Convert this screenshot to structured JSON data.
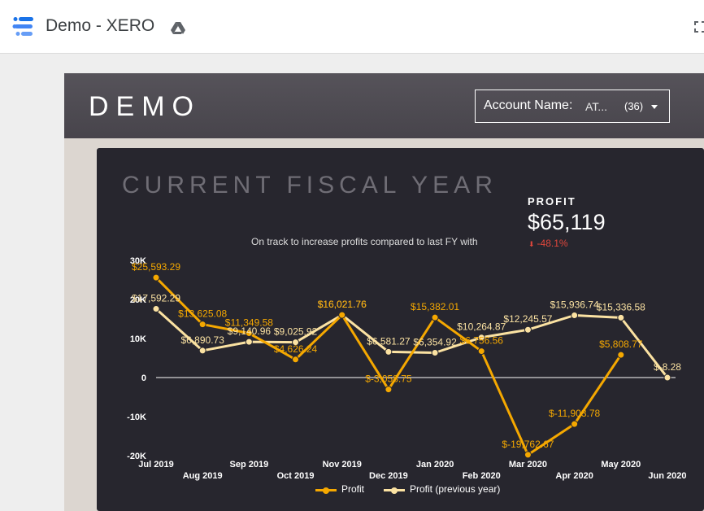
{
  "app": {
    "title": "Demo - XERO",
    "logo_icon": "data-studio-logo-icon",
    "drive_icon": "google-drive-icon",
    "fullscreen_icon": "fullscreen-icon"
  },
  "report": {
    "title": "DEMO",
    "filter": {
      "label": "Account Name:",
      "value": "AT...",
      "count": "(36)",
      "caret_icon": "caret-down-icon"
    }
  },
  "section": {
    "title": "CURRENT FISCAL YEAR",
    "subtitle": "On track to increase profits compared to last FY with"
  },
  "kpi": {
    "label": "PROFIT",
    "value": "$65,119",
    "delta": "-48.1%",
    "delta_color": "#e0473c",
    "delta_icon": "arrow-down-icon"
  },
  "colors": {
    "profit": "#f5a800",
    "profit_prev": "#fbe2a2",
    "panel": "#27262e",
    "header": "#4f4c53"
  },
  "chart_data": {
    "type": "line",
    "categories": [
      "Jul 2019",
      "Aug 2019",
      "Sep 2019",
      "Oct 2019",
      "Nov 2019",
      "Dec 2019",
      "Jan 2020",
      "Feb 2020",
      "Mar 2020",
      "Apr 2020",
      "May 2020",
      "Jun 2020"
    ],
    "yticks": [
      "30K",
      "20K",
      "10K",
      "0",
      "-10K",
      "-20K"
    ],
    "ylim": [
      -20000,
      30000
    ],
    "series": [
      {
        "name": "Profit",
        "values": [
          25593.29,
          13625.08,
          11349.58,
          4626.24,
          16021.76,
          -3058.75,
          15382.01,
          6756.56,
          -19762.67,
          -11903.78,
          5808.77,
          null
        ],
        "labels": [
          "$25,593.29",
          "$13,625.08",
          "$11,349.58",
          "$4,626.24",
          "$16,021.76",
          "$-3,058.75",
          "$15,382.01",
          "$6,756.56",
          "$-19,762.67",
          "$-11,903.78",
          "$5,808.77",
          ""
        ]
      },
      {
        "name": "Profit (previous year)",
        "values": [
          17592.29,
          6890.73,
          9140.96,
          9025.92,
          16021.76,
          6581.27,
          6354.92,
          10264.87,
          12245.57,
          15936.74,
          15336.58,
          -8.28
        ],
        "labels": [
          "$17,592.29",
          "$6,890.73",
          "$9,140.96",
          "$9,025.92",
          "$16,021.76",
          "$6,581.27",
          "$6,354.92",
          "$10,264.87",
          "$12,245.57",
          "$15,936.74",
          "$15,336.58",
          "$-8.28"
        ]
      }
    ],
    "legend": "bottom"
  }
}
